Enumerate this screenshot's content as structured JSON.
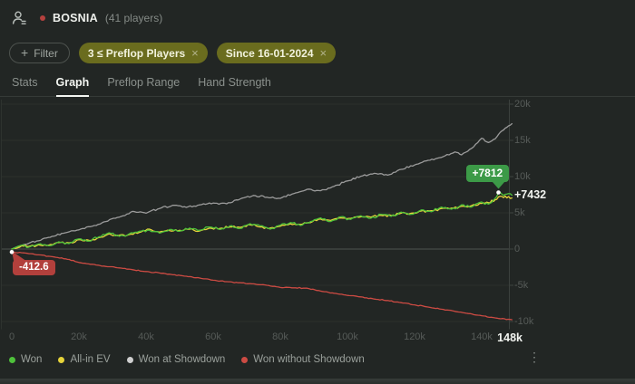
{
  "header": {
    "title": "BOSNIA",
    "players": "(41 players)",
    "status_color": "#b5413e"
  },
  "filter_bar": {
    "plus": "+",
    "filter_button": "Filter",
    "chip_color": "#6a6c1e",
    "chips": [
      {
        "label": "3 ≤ Preflop Players",
        "close": "×"
      },
      {
        "label": "Since 16-01-2024",
        "close": "×"
      }
    ]
  },
  "tabs": {
    "items": [
      {
        "label": "Stats",
        "active": false
      },
      {
        "label": "Graph",
        "active": true
      },
      {
        "label": "Preflop Range",
        "active": false
      },
      {
        "label": "Hand Strength",
        "active": false
      }
    ]
  },
  "chart_data": {
    "type": "line",
    "x_unit": "hands",
    "xlim_hands_k": [
      0,
      149
    ],
    "ylim": [
      -10600,
      20600
    ],
    "grid": true,
    "legend_position": "bottom",
    "y_ticks": [
      {
        "value": 20000,
        "label": "20k"
      },
      {
        "value": 15000,
        "label": "15k"
      },
      {
        "value": 10000,
        "label": "10k"
      },
      {
        "value": 5000,
        "label": "5k"
      },
      {
        "value": 0,
        "label": "0"
      },
      {
        "value": -5000,
        "label": "-5k"
      },
      {
        "value": -10000,
        "label": "-10k"
      }
    ],
    "x_ticks": [
      {
        "hands_k": 0,
        "label": "0"
      },
      {
        "hands_k": 20,
        "label": "20k"
      },
      {
        "hands_k": 40,
        "label": "40k"
      },
      {
        "hands_k": 60,
        "label": "60k"
      },
      {
        "hands_k": 80,
        "label": "80k"
      },
      {
        "hands_k": 100,
        "label": "100k"
      },
      {
        "hands_k": 120,
        "label": "120k"
      },
      {
        "hands_k": 140,
        "label": "140k"
      }
    ],
    "x_end_label": {
      "hands_k": 148.4,
      "label": "148k"
    },
    "series": [
      {
        "name": "Won",
        "color": "#4ec13b",
        "final_label": "+7432",
        "final_value": 7432,
        "points": [
          [
            0,
            0
          ],
          [
            3,
            550
          ],
          [
            5,
            250
          ],
          [
            8,
            700
          ],
          [
            11,
            450
          ],
          [
            14,
            1000
          ],
          [
            17,
            750
          ],
          [
            20,
            1400
          ],
          [
            23,
            1100
          ],
          [
            26,
            1700
          ],
          [
            29,
            2250
          ],
          [
            32,
            1750
          ],
          [
            35,
            2100
          ],
          [
            38,
            2450
          ],
          [
            41,
            2600
          ],
          [
            44,
            2200
          ],
          [
            47,
            2700
          ],
          [
            50,
            2450
          ],
          [
            53,
            2900
          ],
          [
            56,
            2600
          ],
          [
            59,
            3050
          ],
          [
            62,
            2700
          ],
          [
            65,
            3200
          ],
          [
            68,
            2850
          ],
          [
            71,
            3500
          ],
          [
            74,
            3200
          ],
          [
            77,
            2750
          ],
          [
            80,
            3300
          ],
          [
            83,
            3650
          ],
          [
            86,
            3250
          ],
          [
            89,
            3800
          ],
          [
            92,
            4300
          ],
          [
            95,
            3800
          ],
          [
            98,
            4450
          ],
          [
            101,
            4100
          ],
          [
            104,
            4600
          ],
          [
            107,
            4250
          ],
          [
            110,
            4800
          ],
          [
            113,
            4500
          ],
          [
            116,
            5100
          ],
          [
            119,
            4800
          ],
          [
            122,
            5400
          ],
          [
            125,
            5150
          ],
          [
            128,
            5800
          ],
          [
            131,
            5500
          ],
          [
            134,
            6100
          ],
          [
            137,
            5800
          ],
          [
            140,
            6500
          ],
          [
            142,
            6200
          ],
          [
            144,
            7000
          ],
          [
            145,
            7812
          ],
          [
            146.5,
            7400
          ],
          [
            148,
            7650
          ],
          [
            149,
            7432
          ]
        ]
      },
      {
        "name": "All-in EV",
        "color": "#e6d33a",
        "final_value": 7050,
        "points": [
          [
            0,
            0
          ],
          [
            3,
            450
          ],
          [
            5,
            350
          ],
          [
            8,
            600
          ],
          [
            11,
            550
          ],
          [
            14,
            900
          ],
          [
            17,
            850
          ],
          [
            20,
            1300
          ],
          [
            23,
            1200
          ],
          [
            26,
            1600
          ],
          [
            29,
            2100
          ],
          [
            32,
            1900
          ],
          [
            35,
            2000
          ],
          [
            38,
            2300
          ],
          [
            41,
            2750
          ],
          [
            44,
            2350
          ],
          [
            47,
            2550
          ],
          [
            50,
            2600
          ],
          [
            53,
            2750
          ],
          [
            56,
            2500
          ],
          [
            59,
            2900
          ],
          [
            62,
            2850
          ],
          [
            65,
            3050
          ],
          [
            68,
            3000
          ],
          [
            71,
            3350
          ],
          [
            74,
            3050
          ],
          [
            77,
            2900
          ],
          [
            80,
            3150
          ],
          [
            83,
            3500
          ],
          [
            86,
            3400
          ],
          [
            89,
            3650
          ],
          [
            92,
            4150
          ],
          [
            95,
            3950
          ],
          [
            98,
            4300
          ],
          [
            101,
            4250
          ],
          [
            104,
            4450
          ],
          [
            107,
            4400
          ],
          [
            110,
            4650
          ],
          [
            113,
            4650
          ],
          [
            116,
            4950
          ],
          [
            119,
            4950
          ],
          [
            122,
            5250
          ],
          [
            125,
            5300
          ],
          [
            128,
            5600
          ],
          [
            131,
            5650
          ],
          [
            134,
            5900
          ],
          [
            137,
            6000
          ],
          [
            140,
            6300
          ],
          [
            142,
            6400
          ],
          [
            144,
            6800
          ],
          [
            145,
            7200
          ],
          [
            146.5,
            7100
          ],
          [
            148,
            7250
          ],
          [
            149,
            7050
          ]
        ]
      },
      {
        "name": "Won at Showdown",
        "color": "#9b9b9b",
        "final_value": 17300,
        "points": [
          [
            0,
            0
          ],
          [
            4,
            650
          ],
          [
            8,
            1150
          ],
          [
            12,
            1750
          ],
          [
            16,
            2250
          ],
          [
            20,
            2650
          ],
          [
            24,
            3150
          ],
          [
            28,
            3800
          ],
          [
            32,
            4400
          ],
          [
            36,
            5200
          ],
          [
            40,
            4950
          ],
          [
            44,
            5600
          ],
          [
            48,
            6050
          ],
          [
            52,
            5750
          ],
          [
            56,
            6100
          ],
          [
            60,
            6350
          ],
          [
            64,
            6250
          ],
          [
            68,
            6900
          ],
          [
            72,
            7400
          ],
          [
            76,
            7150
          ],
          [
            80,
            7000
          ],
          [
            84,
            7650
          ],
          [
            88,
            8250
          ],
          [
            92,
            8050
          ],
          [
            96,
            8650
          ],
          [
            100,
            9400
          ],
          [
            104,
            10050
          ],
          [
            108,
            10450
          ],
          [
            112,
            10200
          ],
          [
            116,
            11000
          ],
          [
            120,
            11600
          ],
          [
            124,
            12250
          ],
          [
            128,
            12650
          ],
          [
            132,
            13400
          ],
          [
            134,
            13000
          ],
          [
            137,
            13900
          ],
          [
            140,
            15300
          ],
          [
            142,
            14700
          ],
          [
            144,
            15200
          ],
          [
            146,
            16300
          ],
          [
            148,
            17000
          ],
          [
            149,
            17300
          ]
        ]
      },
      {
        "name": "Won without Showdown",
        "color": "#cc4b43",
        "final_value": -9750,
        "points": [
          [
            0,
            -412.6
          ],
          [
            4,
            -550
          ],
          [
            8,
            -800
          ],
          [
            12,
            -1050
          ],
          [
            16,
            -1350
          ],
          [
            20,
            -1850
          ],
          [
            24,
            -2100
          ],
          [
            28,
            -2400
          ],
          [
            32,
            -2600
          ],
          [
            36,
            -2850
          ],
          [
            40,
            -3100
          ],
          [
            44,
            -3300
          ],
          [
            48,
            -3550
          ],
          [
            52,
            -3750
          ],
          [
            56,
            -4000
          ],
          [
            60,
            -4300
          ],
          [
            64,
            -4500
          ],
          [
            68,
            -4650
          ],
          [
            72,
            -4800
          ],
          [
            76,
            -5000
          ],
          [
            80,
            -5300
          ],
          [
            84,
            -5350
          ],
          [
            88,
            -5400
          ],
          [
            92,
            -5800
          ],
          [
            96,
            -6100
          ],
          [
            100,
            -6400
          ],
          [
            104,
            -6600
          ],
          [
            108,
            -6900
          ],
          [
            112,
            -7100
          ],
          [
            116,
            -7400
          ],
          [
            120,
            -7700
          ],
          [
            124,
            -8000
          ],
          [
            128,
            -8300
          ],
          [
            132,
            -8600
          ],
          [
            136,
            -8900
          ],
          [
            140,
            -9200
          ],
          [
            144,
            -9500
          ],
          [
            149,
            -9750
          ]
        ]
      }
    ],
    "markers": [
      {
        "label": "+7812",
        "hands_k": 145,
        "value": 7812,
        "badge_color": "#3c9a47",
        "series": "Won"
      },
      {
        "label": "-412.6",
        "hands_k": 0,
        "value": -412.6,
        "badge_color": "#b2403c",
        "series": "Won without Showdown"
      }
    ],
    "legend": [
      {
        "label": "Won",
        "color": "#4ec13b"
      },
      {
        "label": "All-in EV",
        "color": "#e6d33a"
      },
      {
        "label": "Won at Showdown",
        "color": "#cfcfcf"
      },
      {
        "label": "Won without Showdown",
        "color": "#cc4b43"
      }
    ]
  },
  "menu": {
    "more": "⋮"
  }
}
